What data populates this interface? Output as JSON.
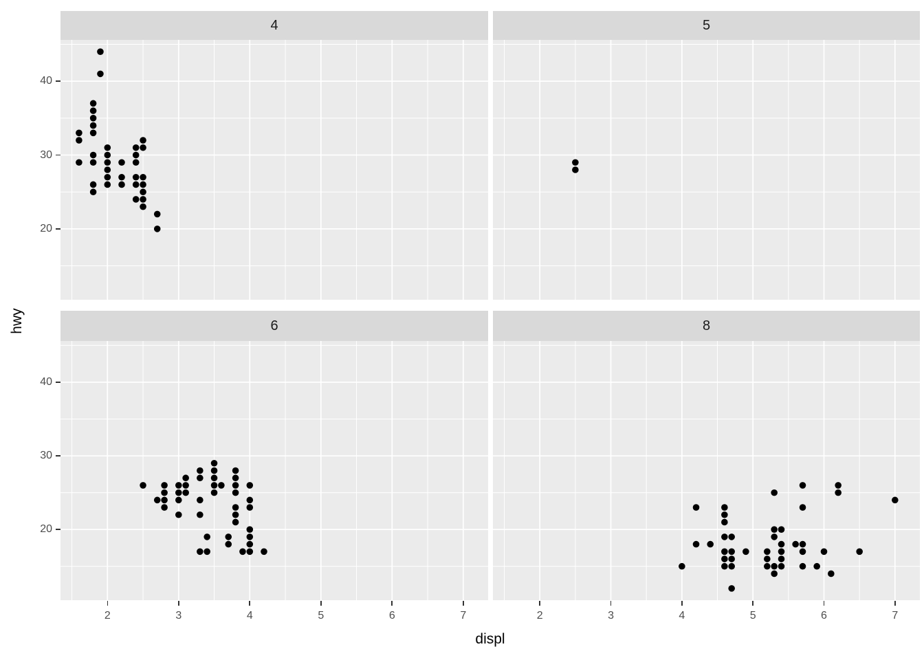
{
  "chart_data": {
    "type": "scatter",
    "title": "",
    "xlabel": "displ",
    "ylabel": "hwy",
    "facet_values": [
      "4",
      "5",
      "6",
      "8"
    ],
    "x_ticks": [
      2,
      3,
      4,
      5,
      6,
      7
    ],
    "x_minor_ticks": [
      1.5,
      2.5,
      3.5,
      4.5,
      5.5,
      6.5,
      7.5
    ],
    "y_ticks": [
      20,
      30,
      40
    ],
    "y_minor_ticks": [
      15,
      25,
      35,
      45
    ],
    "x_range": [
      1.34,
      7.35
    ],
    "y_range": [
      10.4,
      45.6
    ],
    "grid": "white major and minor gridlines on grey panel",
    "legend": "none",
    "colors": {
      "background": "#ffffff",
      "panel_bg": "#ebebeb",
      "strip_bg": "#d9d9d9",
      "gridline": "#ffffff",
      "point": "#000000",
      "tick_label": "#4d4d4d",
      "strip_label": "#1a1a1a",
      "axis_title": "#000000",
      "tick_mark": "#333333"
    },
    "facets": [
      {
        "label": "4",
        "points": [
          [
            1.6,
            33
          ],
          [
            1.6,
            32
          ],
          [
            1.6,
            29
          ],
          [
            1.8,
            37
          ],
          [
            1.8,
            36
          ],
          [
            1.8,
            35
          ],
          [
            1.8,
            34
          ],
          [
            1.8,
            33
          ],
          [
            1.8,
            30
          ],
          [
            1.8,
            29
          ],
          [
            1.8,
            26
          ],
          [
            1.8,
            25
          ],
          [
            1.9,
            44
          ],
          [
            1.9,
            41
          ],
          [
            2.0,
            31
          ],
          [
            2.0,
            30
          ],
          [
            2.0,
            29
          ],
          [
            2.0,
            28
          ],
          [
            2.0,
            27
          ],
          [
            2.0,
            26
          ],
          [
            2.2,
            29
          ],
          [
            2.2,
            27
          ],
          [
            2.2,
            26
          ],
          [
            2.4,
            31
          ],
          [
            2.4,
            30
          ],
          [
            2.4,
            29
          ],
          [
            2.4,
            27
          ],
          [
            2.4,
            26
          ],
          [
            2.4,
            24
          ],
          [
            2.5,
            32
          ],
          [
            2.5,
            31
          ],
          [
            2.5,
            27
          ],
          [
            2.5,
            26
          ],
          [
            2.5,
            25
          ],
          [
            2.5,
            24
          ],
          [
            2.5,
            23
          ],
          [
            2.7,
            22
          ],
          [
            2.7,
            20
          ]
        ]
      },
      {
        "label": "5",
        "points": [
          [
            2.5,
            29
          ],
          [
            2.5,
            28
          ]
        ]
      },
      {
        "label": "6",
        "points": [
          [
            2.5,
            26
          ],
          [
            2.7,
            24
          ],
          [
            2.8,
            26
          ],
          [
            2.8,
            25
          ],
          [
            2.8,
            24
          ],
          [
            2.8,
            23
          ],
          [
            3.0,
            26
          ],
          [
            3.0,
            25
          ],
          [
            3.0,
            24
          ],
          [
            3.0,
            22
          ],
          [
            3.1,
            27
          ],
          [
            3.1,
            26
          ],
          [
            3.1,
            25
          ],
          [
            3.3,
            28
          ],
          [
            3.3,
            27
          ],
          [
            3.3,
            24
          ],
          [
            3.3,
            22
          ],
          [
            3.3,
            17
          ],
          [
            3.4,
            19
          ],
          [
            3.4,
            17
          ],
          [
            3.5,
            29
          ],
          [
            3.5,
            28
          ],
          [
            3.5,
            27
          ],
          [
            3.5,
            26
          ],
          [
            3.5,
            25
          ],
          [
            3.6,
            26
          ],
          [
            3.7,
            19
          ],
          [
            3.7,
            18
          ],
          [
            3.8,
            28
          ],
          [
            3.8,
            27
          ],
          [
            3.8,
            26
          ],
          [
            3.8,
            25
          ],
          [
            3.8,
            23
          ],
          [
            3.8,
            22
          ],
          [
            3.8,
            21
          ],
          [
            3.9,
            17
          ],
          [
            4.0,
            26
          ],
          [
            4.0,
            24
          ],
          [
            4.0,
            23
          ],
          [
            4.0,
            20
          ],
          [
            4.0,
            19
          ],
          [
            4.0,
            18
          ],
          [
            4.0,
            17
          ],
          [
            4.2,
            17
          ]
        ]
      },
      {
        "label": "8",
        "points": [
          [
            4.0,
            15
          ],
          [
            4.2,
            23
          ],
          [
            4.2,
            18
          ],
          [
            4.4,
            18
          ],
          [
            4.6,
            23
          ],
          [
            4.6,
            22
          ],
          [
            4.6,
            21
          ],
          [
            4.6,
            19
          ],
          [
            4.6,
            17
          ],
          [
            4.6,
            16
          ],
          [
            4.6,
            15
          ],
          [
            4.7,
            19
          ],
          [
            4.7,
            17
          ],
          [
            4.7,
            16
          ],
          [
            4.7,
            15
          ],
          [
            4.7,
            12
          ],
          [
            4.9,
            17
          ],
          [
            5.2,
            17
          ],
          [
            5.2,
            16
          ],
          [
            5.2,
            15
          ],
          [
            5.3,
            25
          ],
          [
            5.3,
            20
          ],
          [
            5.3,
            19
          ],
          [
            5.3,
            15
          ],
          [
            5.3,
            14
          ],
          [
            5.4,
            20
          ],
          [
            5.4,
            18
          ],
          [
            5.4,
            17
          ],
          [
            5.4,
            16
          ],
          [
            5.4,
            15
          ],
          [
            5.6,
            18
          ],
          [
            5.7,
            26
          ],
          [
            5.7,
            23
          ],
          [
            5.7,
            18
          ],
          [
            5.7,
            17
          ],
          [
            5.7,
            15
          ],
          [
            5.9,
            15
          ],
          [
            6.0,
            17
          ],
          [
            6.1,
            14
          ],
          [
            6.2,
            26
          ],
          [
            6.2,
            25
          ],
          [
            6.5,
            17
          ],
          [
            7.0,
            24
          ]
        ]
      }
    ]
  }
}
